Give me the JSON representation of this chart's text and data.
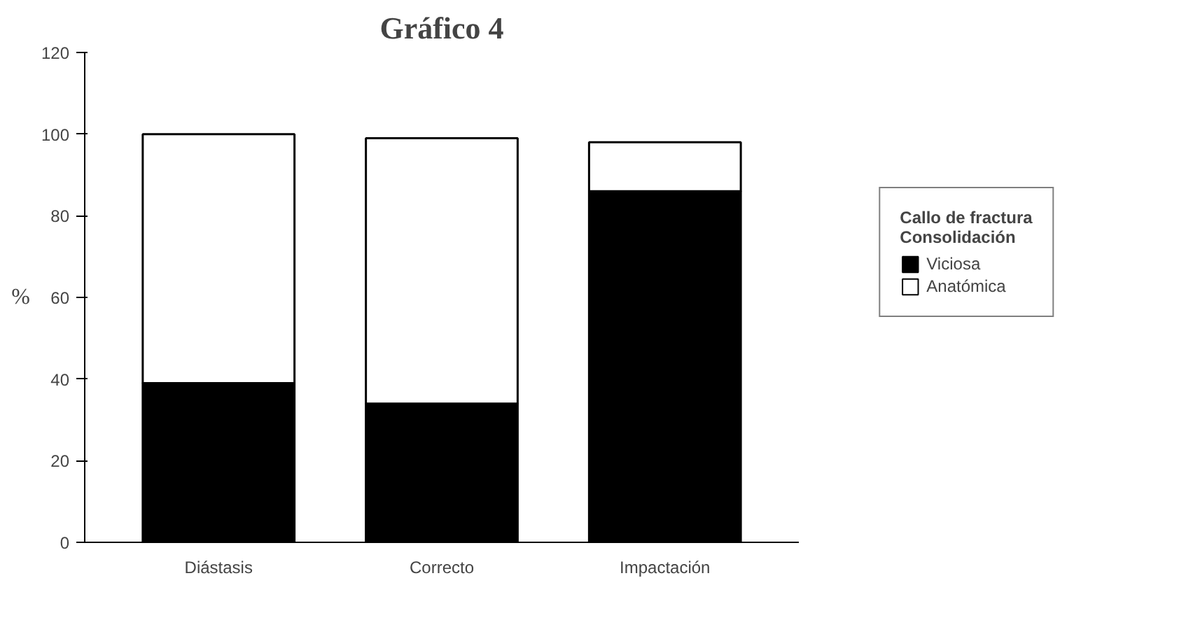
{
  "chart_data": {
    "type": "bar",
    "title": "Gráfico 4",
    "ylabel": "%",
    "legend_title": "Callo de fractura\nConsolidación",
    "categories": [
      "Diástasis",
      "Correcto",
      "Impactación"
    ],
    "series": [
      {
        "name": "Viciosa",
        "color": "#000000",
        "values": [
          39,
          34,
          86
        ]
      },
      {
        "name": "Anatómica",
        "color": "#ffffff",
        "values": [
          61,
          65,
          12
        ]
      }
    ],
    "stacked": true,
    "ylim": [
      0,
      120
    ],
    "yticks": [
      0,
      20,
      40,
      60,
      80,
      100,
      120
    ],
    "grid": false,
    "legend": "right"
  }
}
